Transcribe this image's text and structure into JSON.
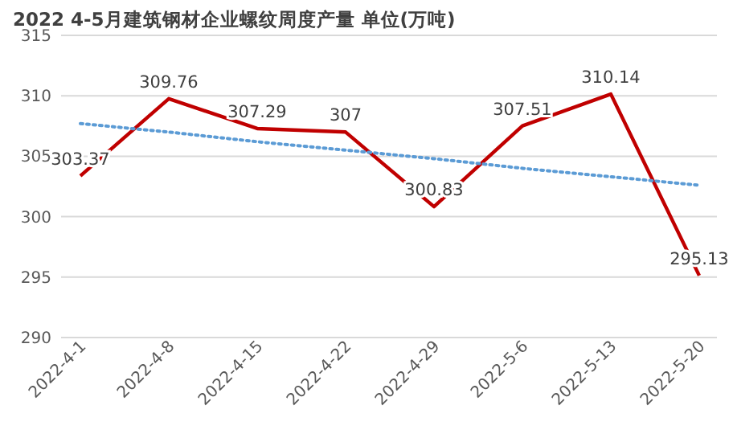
{
  "chart_data": {
    "type": "line",
    "title": "2022  4-5月建筑钢材企业螺纹周度产量  单位(万吨)",
    "categories": [
      "2022-4-1",
      "2022-4-8",
      "2022-4-15",
      "2022-4-22",
      "2022-4-29",
      "2022-5-6",
      "2022-5-13",
      "2022-5-20"
    ],
    "series": [
      {
        "color": "#c00000",
        "values": [
          303.37,
          309.76,
          307.29,
          307,
          300.83,
          307.51,
          310.14,
          295.13
        ],
        "value_labels": [
          "303.37",
          "309.76",
          "307.29",
          "307",
          "300.83",
          "307.51",
          "310.14",
          "295.13"
        ],
        "line_style": "solid"
      },
      {
        "color": "#5b9bd5",
        "values": [
          307.7,
          307,
          306.2,
          305.5,
          304.8,
          304,
          303.3,
          302.6
        ],
        "line_style": "dotted"
      }
    ],
    "ylim": [
      290,
      315
    ],
    "yticks": [
      290,
      295,
      300,
      305,
      310,
      315
    ],
    "grid": "y",
    "marker": "none"
  }
}
